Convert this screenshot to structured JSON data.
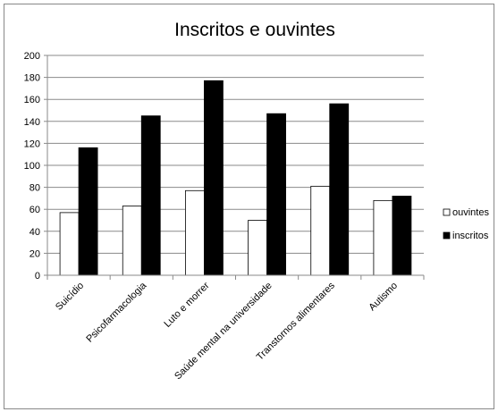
{
  "chart_data": {
    "type": "bar",
    "title": "Inscritos e ouvintes",
    "xlabel": "",
    "ylabel": "",
    "ylim": [
      0,
      200
    ],
    "yticks": [
      0,
      20,
      40,
      60,
      80,
      100,
      120,
      140,
      160,
      180,
      200
    ],
    "grid": true,
    "legend_position": "right",
    "categories": [
      "Suicídio",
      "Psicofarmacologia",
      "Luto e morrer",
      "Saúde mental na universidade",
      "Transtornos alimentares",
      "Autismo"
    ],
    "series": [
      {
        "name": "ouvintes",
        "color": "#ffffff",
        "values": [
          57,
          63,
          77,
          50,
          81,
          68
        ]
      },
      {
        "name": "inscritos",
        "color": "#000000",
        "values": [
          116,
          145,
          177,
          147,
          156,
          72
        ]
      }
    ]
  }
}
